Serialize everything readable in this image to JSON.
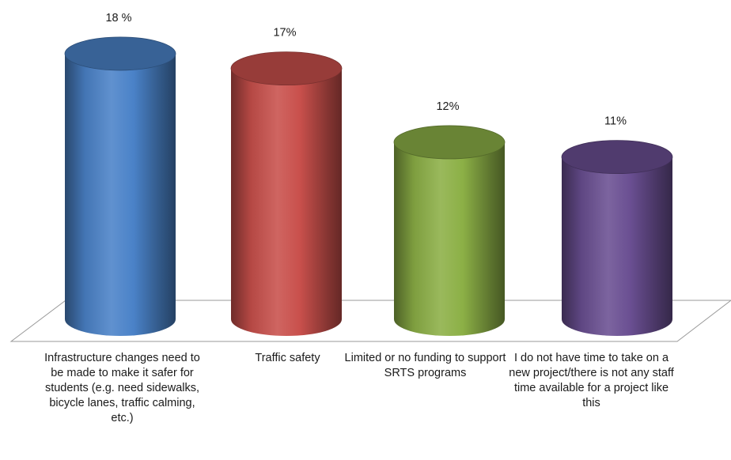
{
  "chart_data": {
    "type": "bar",
    "bar_shape": "3d-cylinder",
    "categories": [
      "Infrastructure changes need to be made to make it safer for students (e.g. need sidewalks, bicycle lanes, traffic calming, etc.)",
      "Traffic safety",
      "Limited or no funding to support SRTS programs",
      "I do not have time to take on a new project/there is not any staff time available for a project like this"
    ],
    "values": [
      18,
      17,
      12,
      11
    ],
    "data_labels": [
      "18 %",
      "17%",
      "12%",
      "11%"
    ],
    "colors": [
      "#4a82c8",
      "#c9504c",
      "#8cb046",
      "#6a4f92"
    ],
    "title": "",
    "xlabel": "",
    "ylabel": "",
    "grid": false,
    "legend": "none",
    "floor": "3d-perspective"
  }
}
